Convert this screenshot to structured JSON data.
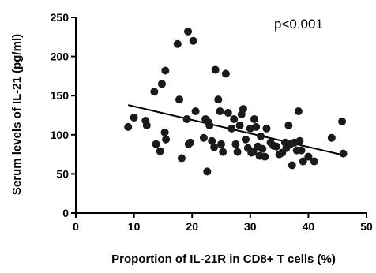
{
  "chart_data": {
    "type": "scatter",
    "title": "",
    "xlabel": "Proportion of IL-21R in CD8+ T cells (%)",
    "ylabel": "Serum levels of IL-21 (pg/ml)",
    "annotation": "p<0.001",
    "xlim": [
      0,
      50
    ],
    "ylim": [
      0,
      250
    ],
    "x_ticks": [
      "0",
      "10",
      "20",
      "30",
      "40",
      "50"
    ],
    "y_ticks": [
      "0",
      "50",
      "100",
      "150",
      "200",
      "250"
    ],
    "grid": false,
    "trendline": {
      "x": [
        9,
        46
      ],
      "y": [
        138,
        74
      ]
    },
    "points": [
      [
        9.0,
        110
      ],
      [
        10.0,
        122
      ],
      [
        12.0,
        118
      ],
      [
        12.2,
        112
      ],
      [
        13.5,
        155
      ],
      [
        13.8,
        88
      ],
      [
        14.5,
        79
      ],
      [
        14.8,
        165
      ],
      [
        15.3,
        103
      ],
      [
        15.4,
        182
      ],
      [
        15.5,
        94
      ],
      [
        17.5,
        216
      ],
      [
        17.8,
        145
      ],
      [
        18.2,
        70
      ],
      [
        19.1,
        120
      ],
      [
        19.3,
        232
      ],
      [
        19.4,
        88
      ],
      [
        19.7,
        90
      ],
      [
        20.2,
        220
      ],
      [
        20.6,
        130
      ],
      [
        22.0,
        96
      ],
      [
        22.3,
        120
      ],
      [
        22.6,
        53
      ],
      [
        22.8,
        116
      ],
      [
        23.0,
        112
      ],
      [
        23.4,
        92
      ],
      [
        23.8,
        84
      ],
      [
        24.0,
        183
      ],
      [
        24.5,
        145
      ],
      [
        24.8,
        130
      ],
      [
        25.0,
        88
      ],
      [
        25.3,
        78
      ],
      [
        25.8,
        178
      ],
      [
        26.2,
        128
      ],
      [
        26.8,
        108
      ],
      [
        27.2,
        120
      ],
      [
        27.5,
        88
      ],
      [
        27.8,
        78
      ],
      [
        28.2,
        112
      ],
      [
        28.5,
        126
      ],
      [
        28.8,
        133
      ],
      [
        29.2,
        94
      ],
      [
        29.6,
        83
      ],
      [
        30.0,
        108
      ],
      [
        30.2,
        77
      ],
      [
        30.5,
        78
      ],
      [
        30.7,
        120
      ],
      [
        31.0,
        110
      ],
      [
        31.3,
        85
      ],
      [
        31.6,
        73
      ],
      [
        31.8,
        98
      ],
      [
        32.1,
        82
      ],
      [
        32.5,
        72
      ],
      [
        32.8,
        108
      ],
      [
        33.5,
        90
      ],
      [
        34.0,
        86
      ],
      [
        34.5,
        85
      ],
      [
        35.0,
        75
      ],
      [
        35.5,
        77
      ],
      [
        36.0,
        90
      ],
      [
        36.2,
        83
      ],
      [
        36.6,
        112
      ],
      [
        36.9,
        88
      ],
      [
        37.2,
        61
      ],
      [
        37.6,
        90
      ],
      [
        38.0,
        80
      ],
      [
        38.3,
        130
      ],
      [
        38.5,
        92
      ],
      [
        38.8,
        80
      ],
      [
        39.1,
        66
      ],
      [
        40.0,
        72
      ],
      [
        41.0,
        66
      ],
      [
        44.0,
        96
      ],
      [
        45.8,
        117
      ],
      [
        46.0,
        76
      ]
    ]
  }
}
